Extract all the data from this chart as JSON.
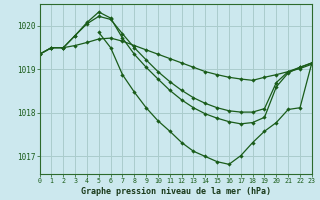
{
  "title": "Graphe pression niveau de la mer (hPa)",
  "background_color": "#cce8ee",
  "grid_color": "#aacccc",
  "line_color": "#1a5c1a",
  "xlim": [
    0,
    23
  ],
  "ylim": [
    1016.6,
    1020.5
  ],
  "yticks": [
    1017,
    1018,
    1019,
    1020
  ],
  "xtick_labels": [
    "0",
    "1",
    "2",
    "3",
    "4",
    "5",
    "6",
    "7",
    "8",
    "9",
    "10",
    "11",
    "12",
    "13",
    "14",
    "15",
    "16",
    "17",
    "18",
    "19",
    "20",
    "21",
    "22",
    "23"
  ],
  "line1_x": [
    0,
    1,
    2,
    3,
    4,
    5,
    6,
    7,
    8,
    9,
    10,
    11,
    12,
    13,
    14,
    15,
    16,
    17,
    18,
    19,
    20,
    21,
    22,
    23
  ],
  "line1_y": [
    1019.35,
    1019.5,
    1019.5,
    1019.55,
    1019.62,
    1019.7,
    1019.72,
    1019.65,
    1019.55,
    1019.45,
    1019.35,
    1019.25,
    1019.15,
    1019.05,
    1018.95,
    1018.88,
    1018.82,
    1018.78,
    1018.75,
    1018.82,
    1018.88,
    1018.95,
    1019.02,
    1019.12
  ],
  "line2_x": [
    0,
    1,
    2,
    3,
    4,
    5,
    6,
    7,
    8,
    9,
    10,
    11,
    12,
    13,
    14,
    15,
    16,
    17,
    18,
    19,
    20,
    21,
    22,
    23
  ],
  "line2_y": [
    1019.35,
    1019.5,
    1019.5,
    1019.78,
    1020.05,
    1020.22,
    1020.15,
    1019.82,
    1019.5,
    1019.22,
    1018.95,
    1018.72,
    1018.52,
    1018.35,
    1018.22,
    1018.12,
    1018.05,
    1018.02,
    1018.02,
    1018.1,
    1018.7,
    1018.95,
    1019.05,
    1019.15
  ],
  "line3_x": [
    0,
    1,
    2,
    3,
    4,
    5,
    6,
    7,
    8,
    9,
    10,
    11,
    12,
    13,
    14,
    15,
    16,
    17,
    18,
    19,
    20,
    21,
    22,
    23
  ],
  "line3_y": [
    1019.35,
    1019.5,
    1019.5,
    1019.78,
    1020.08,
    1020.32,
    1020.18,
    1019.72,
    1019.35,
    1019.05,
    1018.78,
    1018.52,
    1018.3,
    1018.12,
    1017.98,
    1017.88,
    1017.8,
    1017.75,
    1017.78,
    1017.9,
    1018.6,
    1018.92,
    1019.05,
    1019.15
  ],
  "line4_x": [
    5,
    6,
    7,
    8,
    9,
    10,
    11,
    12,
    13,
    14,
    15,
    16,
    17,
    18,
    19,
    20,
    21,
    22,
    23
  ],
  "line4_y": [
    1019.85,
    1019.5,
    1018.88,
    1018.48,
    1018.12,
    1017.82,
    1017.58,
    1017.32,
    1017.12,
    1017.0,
    1016.88,
    1016.82,
    1017.02,
    1017.32,
    1017.58,
    1017.78,
    1018.08,
    1018.12,
    1019.15
  ]
}
